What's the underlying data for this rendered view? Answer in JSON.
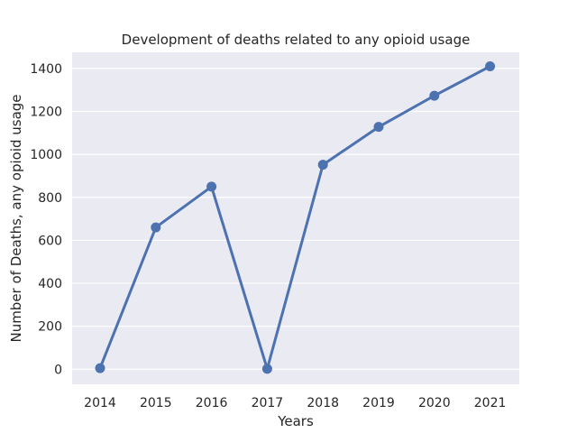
{
  "chart_data": {
    "type": "line",
    "title": "Development of deaths related to any opioid usage",
    "xlabel": "Years",
    "ylabel": "Number of Deaths, any opioid usage",
    "categories": [
      "2014",
      "2015",
      "2016",
      "2017",
      "2018",
      "2019",
      "2020",
      "2021"
    ],
    "series": [
      {
        "values": [
          5,
          660,
          850,
          2,
          952,
          1128,
          1273,
          1410
        ]
      }
    ],
    "ylim": [
      -70,
      1475
    ],
    "yticks": [
      0,
      200,
      400,
      600,
      800,
      1000,
      1200,
      1400
    ],
    "grid": "horizontal",
    "colors": {
      "line": "#4c72b0",
      "plot_background": "#eaeaf2",
      "grid": "#ffffff"
    }
  }
}
